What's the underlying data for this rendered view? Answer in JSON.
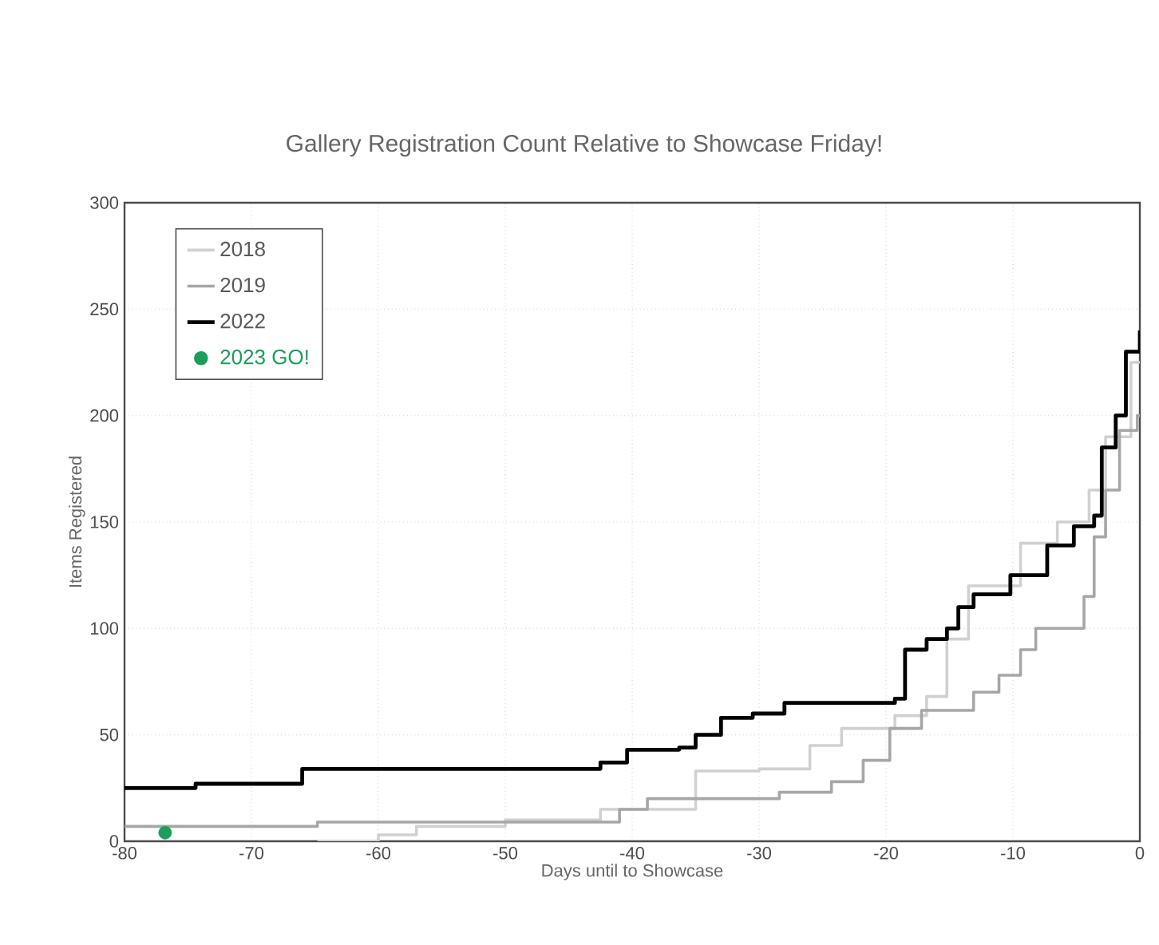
{
  "chart_data": {
    "type": "step",
    "title": "Gallery Registration Count Relative to Showcase Friday!",
    "xlabel": "Days until to Showcase",
    "ylabel": "Items Registered",
    "xlim": [
      -80,
      0
    ],
    "xticks": [
      -80,
      -70,
      -60,
      -50,
      -40,
      -30,
      -20,
      -10,
      0
    ],
    "ylim": [
      0,
      300
    ],
    "yticks": [
      0,
      50,
      100,
      150,
      200,
      250,
      300
    ],
    "grid": true,
    "legend": "top left",
    "series": [
      {
        "name": "2018",
        "color": "#d0d0d0",
        "x": [
          -64.8,
          -60,
          -57,
          -50,
          -42.5,
          -35,
          -30,
          -26,
          -23.5,
          -19.3,
          -16.8,
          -15.2,
          -13.5,
          -9.4,
          -6.5,
          -4,
          -2.7,
          -0.7,
          0
        ],
        "values": [
          0,
          3,
          7,
          10,
          15,
          33,
          34,
          45,
          53,
          59,
          68,
          95,
          120,
          140,
          150,
          165,
          190,
          225,
          225
        ]
      },
      {
        "name": "2019",
        "color": "#a6a6a6",
        "x": [
          -80,
          -64.8,
          -41,
          -38.8,
          -28.4,
          -24.3,
          -21.8,
          -19.7,
          -17.2,
          -13.1,
          -11.1,
          -9.4,
          -8.2,
          -4.4,
          -3.6,
          -2.7,
          -1.6,
          -0.2,
          0
        ],
        "values": [
          7,
          9,
          15,
          20,
          23,
          28,
          38,
          53,
          61.5,
          70,
          78,
          90,
          100,
          115,
          143,
          165,
          193,
          200,
          200
        ]
      },
      {
        "name": "2022",
        "color": "#000000",
        "x": [
          -80,
          -74.4,
          -66,
          -42.5,
          -40.4,
          -36.3,
          -35,
          -33,
          -30.5,
          -28,
          -19.3,
          -18.5,
          -16.8,
          -15.2,
          -14.3,
          -13.1,
          -10.2,
          -7.3,
          -5.2,
          -3.6,
          -3,
          -1.9,
          -1.1,
          0
        ],
        "values": [
          25,
          27,
          34,
          37,
          43,
          44,
          50,
          58,
          60,
          65,
          67,
          90,
          95,
          100,
          110,
          116,
          125,
          139,
          148,
          153,
          185,
          200,
          230,
          240
        ]
      },
      {
        "name": "2023 GO!",
        "type": "scatter",
        "marker": "circle",
        "color": "#1a9e5a",
        "x": [
          -76.8
        ],
        "values": [
          4
        ]
      }
    ]
  }
}
